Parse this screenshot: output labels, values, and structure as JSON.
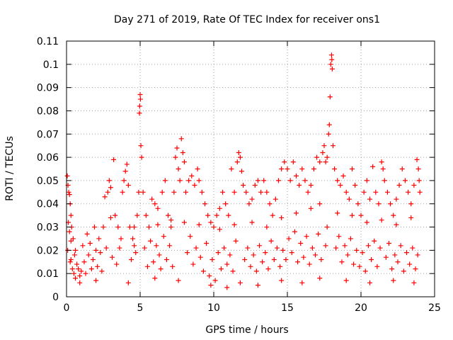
{
  "chart_data": {
    "type": "scatter",
    "title": "Day 271 of 2019, Rate Of TEC Index for receiver ons1",
    "xlabel": "GPS time / hours",
    "ylabel": "ROTI / TECUs",
    "xlim": [
      0,
      25
    ],
    "ylim": [
      0,
      0.11
    ],
    "x_ticks": [
      0,
      5,
      10,
      15,
      20,
      25
    ],
    "x_tick_labels": [
      "0",
      "5",
      "10",
      "15",
      "20",
      "25"
    ],
    "y_ticks": [
      0,
      0.01,
      0.02,
      0.03,
      0.04,
      0.05,
      0.06,
      0.07,
      0.08,
      0.09,
      0.1,
      0.11
    ],
    "y_tick_labels": [
      "0",
      "0.01",
      "0.02",
      "0.03",
      "0.04",
      "0.05",
      "0.06",
      "0.07",
      "0.08",
      "0.09",
      "0.1",
      "0.11"
    ],
    "grid": true,
    "marker": "plus",
    "marker_color": "#ff0000",
    "series": [
      {
        "name": "ROTI",
        "points": [
          [
            0.05,
            0.052
          ],
          [
            0.1,
            0.048
          ],
          [
            0.15,
            0.045
          ],
          [
            0.2,
            0.044
          ],
          [
            0.25,
            0.04
          ],
          [
            0.3,
            0.035
          ],
          [
            0.12,
            0.032
          ],
          [
            0.2,
            0.028
          ],
          [
            0.3,
            0.024
          ],
          [
            0.08,
            0.02
          ],
          [
            0.25,
            0.015
          ],
          [
            0.4,
            0.012
          ],
          [
            0.5,
            0.01
          ],
          [
            0.6,
            0.008
          ],
          [
            0.35,
            0.03
          ],
          [
            0.45,
            0.025
          ],
          [
            0.55,
            0.018
          ],
          [
            0.7,
            0.014
          ],
          [
            0.8,
            0.012
          ],
          [
            0.9,
            0.009
          ],
          [
            1.0,
            0.011
          ],
          [
            1.2,
            0.015
          ],
          [
            1.4,
            0.027
          ],
          [
            1.5,
            0.018
          ],
          [
            1.7,
            0.012
          ],
          [
            2.0,
            0.02
          ],
          [
            2.2,
            0.025
          ],
          [
            2.5,
            0.03
          ],
          [
            2.6,
            0.043
          ],
          [
            2.8,
            0.045
          ],
          [
            2.9,
            0.05
          ],
          [
            3.2,
            0.059
          ],
          [
            3.0,
            0.047
          ],
          [
            3.3,
            0.035
          ],
          [
            3.5,
            0.03
          ],
          [
            3.7,
            0.025
          ],
          [
            3.8,
            0.045
          ],
          [
            3.9,
            0.05
          ],
          [
            4.0,
            0.054
          ],
          [
            4.1,
            0.057
          ],
          [
            4.2,
            0.048
          ],
          [
            4.3,
            0.03
          ],
          [
            4.5,
            0.025
          ],
          [
            4.6,
            0.022
          ],
          [
            4.8,
            0.035
          ],
          [
            4.9,
            0.045
          ],
          [
            4.95,
            0.079
          ],
          [
            4.97,
            0.082
          ],
          [
            5.0,
            0.087
          ],
          [
            5.02,
            0.085
          ],
          [
            5.05,
            0.065
          ],
          [
            5.1,
            0.06
          ],
          [
            5.2,
            0.045
          ],
          [
            5.4,
            0.035
          ],
          [
            5.6,
            0.03
          ],
          [
            5.8,
            0.042
          ],
          [
            6.0,
            0.04
          ],
          [
            6.2,
            0.038
          ],
          [
            6.5,
            0.045
          ],
          [
            6.7,
            0.05
          ],
          [
            6.9,
            0.035
          ],
          [
            7.1,
            0.03
          ],
          [
            7.3,
            0.045
          ],
          [
            7.4,
            0.06
          ],
          [
            7.5,
            0.064
          ],
          [
            7.6,
            0.055
          ],
          [
            7.7,
            0.05
          ],
          [
            7.8,
            0.068
          ],
          [
            7.9,
            0.062
          ],
          [
            8.0,
            0.058
          ],
          [
            8.1,
            0.045
          ],
          [
            8.3,
            0.05
          ],
          [
            8.5,
            0.052
          ],
          [
            8.7,
            0.048
          ],
          [
            8.9,
            0.055
          ],
          [
            9.0,
            0.05
          ],
          [
            9.2,
            0.045
          ],
          [
            9.4,
            0.04
          ],
          [
            9.6,
            0.035
          ],
          [
            9.8,
            0.032
          ],
          [
            10.0,
            0.03
          ],
          [
            10.2,
            0.035
          ],
          [
            10.4,
            0.038
          ],
          [
            10.6,
            0.045
          ],
          [
            10.8,
            0.04
          ],
          [
            11.0,
            0.035
          ],
          [
            11.2,
            0.055
          ],
          [
            11.4,
            0.045
          ],
          [
            11.6,
            0.058
          ],
          [
            11.7,
            0.062
          ],
          [
            11.8,
            0.06
          ],
          [
            11.9,
            0.054
          ],
          [
            12.0,
            0.048
          ],
          [
            12.2,
            0.045
          ],
          [
            12.4,
            0.04
          ],
          [
            12.6,
            0.042
          ],
          [
            12.8,
            0.048
          ],
          [
            13.0,
            0.05
          ],
          [
            13.2,
            0.045
          ],
          [
            13.4,
            0.05
          ],
          [
            13.6,
            0.045
          ],
          [
            13.8,
            0.04
          ],
          [
            14.0,
            0.035
          ],
          [
            14.2,
            0.042
          ],
          [
            14.4,
            0.05
          ],
          [
            14.6,
            0.055
          ],
          [
            14.8,
            0.058
          ],
          [
            15.0,
            0.055
          ],
          [
            15.2,
            0.05
          ],
          [
            15.4,
            0.058
          ],
          [
            15.6,
            0.052
          ],
          [
            15.8,
            0.048
          ],
          [
            16.0,
            0.055
          ],
          [
            16.2,
            0.05
          ],
          [
            16.4,
            0.045
          ],
          [
            16.6,
            0.048
          ],
          [
            16.8,
            0.055
          ],
          [
            17.0,
            0.06
          ],
          [
            17.2,
            0.058
          ],
          [
            17.4,
            0.062
          ],
          [
            17.5,
            0.065
          ],
          [
            17.6,
            0.058
          ],
          [
            17.7,
            0.06
          ],
          [
            17.8,
            0.07
          ],
          [
            17.85,
            0.074
          ],
          [
            17.9,
            0.086
          ],
          [
            17.95,
            0.1
          ],
          [
            18.0,
            0.104
          ],
          [
            18.02,
            0.102
          ],
          [
            18.05,
            0.098
          ],
          [
            18.1,
            0.065
          ],
          [
            18.2,
            0.055
          ],
          [
            18.4,
            0.05
          ],
          [
            18.6,
            0.048
          ],
          [
            18.8,
            0.052
          ],
          [
            19.0,
            0.045
          ],
          [
            19.2,
            0.042
          ],
          [
            19.4,
            0.055
          ],
          [
            19.6,
            0.048
          ],
          [
            19.8,
            0.04
          ],
          [
            20.0,
            0.035
          ],
          [
            20.2,
            0.045
          ],
          [
            20.4,
            0.05
          ],
          [
            20.6,
            0.042
          ],
          [
            20.8,
            0.056
          ],
          [
            21.0,
            0.045
          ],
          [
            21.2,
            0.04
          ],
          [
            21.4,
            0.058
          ],
          [
            21.5,
            0.055
          ],
          [
            21.6,
            0.05
          ],
          [
            21.8,
            0.045
          ],
          [
            22.0,
            0.04
          ],
          [
            22.2,
            0.035
          ],
          [
            22.4,
            0.042
          ],
          [
            22.6,
            0.048
          ],
          [
            22.8,
            0.055
          ],
          [
            23.0,
            0.05
          ],
          [
            23.2,
            0.045
          ],
          [
            23.4,
            0.04
          ],
          [
            23.6,
            0.048
          ],
          [
            23.8,
            0.059
          ],
          [
            23.9,
            0.055
          ],
          [
            23.95,
            0.05
          ],
          [
            24.0,
            0.045
          ],
          [
            0.3,
            0.016
          ],
          [
            0.6,
            0.02
          ],
          [
            1.1,
            0.022
          ],
          [
            1.3,
            0.01
          ],
          [
            1.6,
            0.023
          ],
          [
            1.8,
            0.016
          ],
          [
            2.1,
            0.013
          ],
          [
            2.3,
            0.019
          ],
          [
            2.4,
            0.011
          ],
          [
            2.7,
            0.021
          ],
          [
            3.1,
            0.017
          ],
          [
            3.4,
            0.014
          ],
          [
            3.6,
            0.021
          ],
          [
            4.4,
            0.016
          ],
          [
            4.7,
            0.019
          ],
          [
            5.3,
            0.021
          ],
          [
            5.5,
            0.013
          ],
          [
            5.7,
            0.024
          ],
          [
            5.9,
            0.015
          ],
          [
            6.1,
            0.022
          ],
          [
            6.3,
            0.018
          ],
          [
            6.4,
            0.012
          ],
          [
            6.6,
            0.026
          ],
          [
            6.8,
            0.016
          ],
          [
            7.0,
            0.022
          ],
          [
            7.2,
            0.013
          ],
          [
            8.2,
            0.019
          ],
          [
            8.4,
            0.026
          ],
          [
            8.6,
            0.014
          ],
          [
            8.8,
            0.021
          ],
          [
            9.1,
            0.017
          ],
          [
            9.3,
            0.011
          ],
          [
            9.5,
            0.023
          ],
          [
            9.7,
            0.009
          ],
          [
            9.9,
            0.016
          ],
          [
            10.1,
            0.007
          ],
          [
            10.3,
            0.019
          ],
          [
            10.5,
            0.012
          ],
          [
            10.7,
            0.021
          ],
          [
            10.9,
            0.014
          ],
          [
            11.1,
            0.018
          ],
          [
            11.3,
            0.011
          ],
          [
            11.5,
            0.024
          ],
          [
            12.1,
            0.016
          ],
          [
            12.3,
            0.021
          ],
          [
            12.5,
            0.013
          ],
          [
            12.7,
            0.018
          ],
          [
            12.9,
            0.011
          ],
          [
            13.1,
            0.022
          ],
          [
            13.3,
            0.015
          ],
          [
            13.5,
            0.019
          ],
          [
            13.7,
            0.012
          ],
          [
            13.9,
            0.024
          ],
          [
            14.1,
            0.016
          ],
          [
            14.3,
            0.021
          ],
          [
            14.5,
            0.013
          ],
          [
            14.7,
            0.02
          ],
          [
            14.9,
            0.016
          ],
          [
            15.1,
            0.025
          ],
          [
            15.3,
            0.019
          ],
          [
            15.5,
            0.028
          ],
          [
            15.7,
            0.015
          ],
          [
            15.9,
            0.023
          ],
          [
            16.1,
            0.017
          ],
          [
            16.3,
            0.026
          ],
          [
            16.5,
            0.014
          ],
          [
            16.7,
            0.021
          ],
          [
            16.9,
            0.018
          ],
          [
            17.1,
            0.027
          ],
          [
            17.3,
            0.016
          ],
          [
            17.6,
            0.022
          ],
          [
            17.7,
            0.03
          ],
          [
            18.3,
            0.021
          ],
          [
            18.5,
            0.026
          ],
          [
            18.7,
            0.015
          ],
          [
            18.9,
            0.022
          ],
          [
            19.1,
            0.018
          ],
          [
            19.3,
            0.025
          ],
          [
            19.5,
            0.014
          ],
          [
            19.7,
            0.02
          ],
          [
            19.9,
            0.013
          ],
          [
            20.1,
            0.019
          ],
          [
            20.3,
            0.011
          ],
          [
            20.5,
            0.022
          ],
          [
            20.7,
            0.016
          ],
          [
            20.9,
            0.024
          ],
          [
            21.1,
            0.013
          ],
          [
            21.3,
            0.021
          ],
          [
            21.7,
            0.017
          ],
          [
            21.9,
            0.023
          ],
          [
            22.1,
            0.012
          ],
          [
            22.3,
            0.018
          ],
          [
            22.5,
            0.015
          ],
          [
            22.7,
            0.022
          ],
          [
            22.9,
            0.011
          ],
          [
            23.1,
            0.019
          ],
          [
            23.3,
            0.014
          ],
          [
            23.5,
            0.021
          ],
          [
            23.7,
            0.012
          ],
          [
            23.85,
            0.018
          ],
          [
            0.9,
            0.006
          ],
          [
            2.0,
            0.007
          ],
          [
            4.2,
            0.006
          ],
          [
            6.0,
            0.008
          ],
          [
            7.6,
            0.007
          ],
          [
            9.8,
            0.005
          ],
          [
            10.9,
            0.004
          ],
          [
            11.8,
            0.006
          ],
          [
            13.0,
            0.005
          ],
          [
            14.6,
            0.007
          ],
          [
            16.0,
            0.006
          ],
          [
            17.2,
            0.008
          ],
          [
            19.0,
            0.007
          ],
          [
            20.6,
            0.006
          ],
          [
            22.2,
            0.007
          ],
          [
            23.6,
            0.006
          ],
          [
            1.9,
            0.03
          ],
          [
            3.0,
            0.034
          ],
          [
            4.6,
            0.03
          ],
          [
            6.2,
            0.031
          ],
          [
            7.1,
            0.033
          ],
          [
            8.0,
            0.032
          ],
          [
            9.0,
            0.031
          ],
          [
            10.4,
            0.029
          ],
          [
            11.4,
            0.031
          ],
          [
            12.6,
            0.032
          ],
          [
            13.6,
            0.03
          ],
          [
            14.6,
            0.034
          ],
          [
            15.6,
            0.036
          ],
          [
            16.6,
            0.038
          ],
          [
            17.2,
            0.04
          ],
          [
            18.4,
            0.036
          ],
          [
            19.4,
            0.035
          ],
          [
            20.4,
            0.032
          ],
          [
            21.4,
            0.033
          ],
          [
            22.4,
            0.031
          ],
          [
            23.4,
            0.034
          ]
        ]
      }
    ]
  }
}
